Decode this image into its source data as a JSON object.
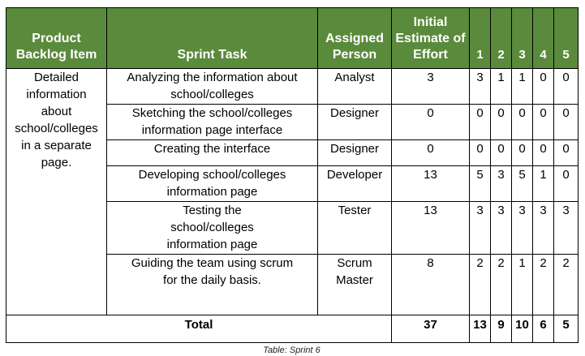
{
  "headers": {
    "backlog": "Product Backlog Item",
    "task": "Sprint Task",
    "person": "Assigned Person",
    "estimate": "Initial Estimate of Effort",
    "days": [
      "1",
      "2",
      "3",
      "4",
      "5"
    ]
  },
  "backlog_item": "Detailed information about school/colleges in a separate page.",
  "rows": [
    {
      "task": "Analyzing the information about school/colleges",
      "person": "Analyst",
      "estimate": "3",
      "days": [
        "3",
        "1",
        "1",
        "0",
        "0"
      ]
    },
    {
      "task": "Sketching the school/colleges information page interface",
      "person": "Designer",
      "estimate": "0",
      "days": [
        "0",
        "0",
        "0",
        "0",
        "0"
      ]
    },
    {
      "task": "Creating the interface",
      "person": "Designer",
      "estimate": "0",
      "days": [
        "0",
        "0",
        "0",
        "0",
        "0"
      ]
    },
    {
      "task": "Developing school/colleges information page",
      "person": "Developer",
      "estimate": "13",
      "days": [
        "5",
        "3",
        "5",
        "1",
        "0"
      ]
    },
    {
      "task": "Testing the school/colleges information page",
      "person": "Tester",
      "estimate": "13",
      "days": [
        "3",
        "3",
        "3",
        "3",
        "3"
      ]
    },
    {
      "task": "Guiding the team using scrum for the daily basis.",
      "person": "Scrum Master",
      "estimate": "8",
      "days": [
        "2",
        "2",
        "1",
        "2",
        "2"
      ]
    }
  ],
  "total": {
    "label": "Total",
    "estimate": "37",
    "days": [
      "13",
      "9",
      "10",
      "6",
      "5"
    ]
  },
  "caption": "Table: Sprint 6",
  "colors": {
    "header_bg": "#5a8a3b",
    "header_text": "#ffffff",
    "border": "#000000"
  }
}
